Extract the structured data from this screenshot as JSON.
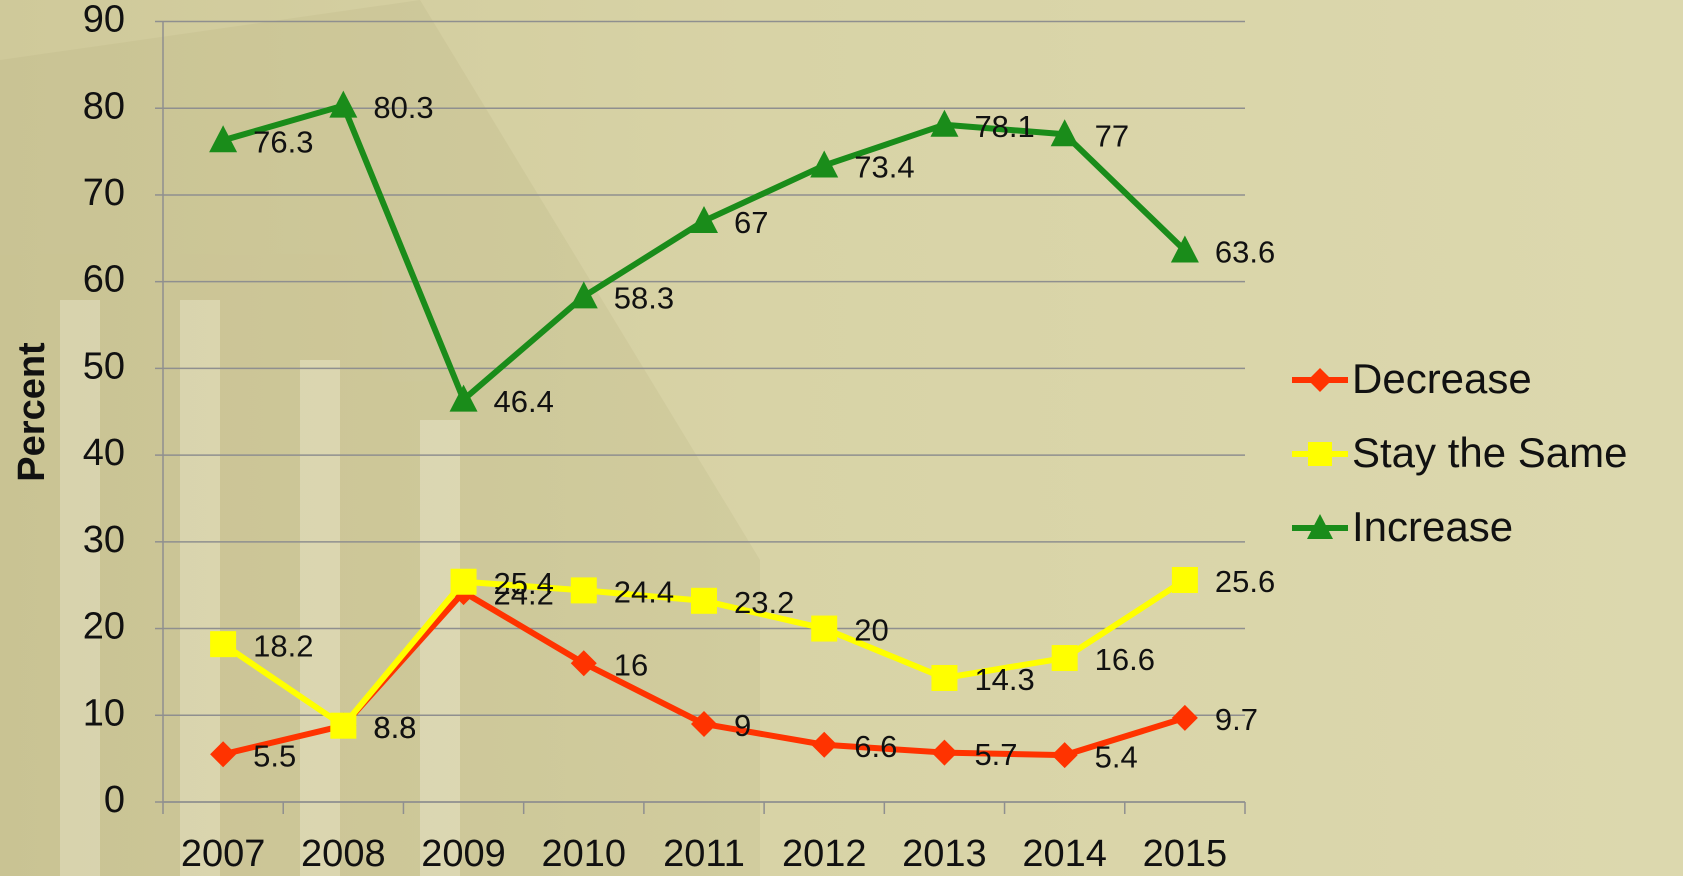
{
  "chart_data": {
    "type": "line",
    "y_label": "Percent",
    "categories": [
      "2007",
      "2008",
      "2009",
      "2010",
      "2011",
      "2012",
      "2013",
      "2014",
      "2015"
    ],
    "series": [
      {
        "name": "Decrease",
        "color": "#ff3300",
        "marker": "diamond",
        "values": [
          5.5,
          8.8,
          24.2,
          16,
          9,
          6.6,
          5.7,
          5.4,
          9.7
        ]
      },
      {
        "name": "Stay the Same",
        "color": "#ffff00",
        "marker": "square",
        "values": [
          18.2,
          8.8,
          25.4,
          24.4,
          23.2,
          20,
          14.3,
          16.6,
          25.6
        ]
      },
      {
        "name": "Increase",
        "color": "#1a8c1a",
        "marker": "triangle",
        "values": [
          76.3,
          80.3,
          46.4,
          58.3,
          67,
          73.4,
          78.1,
          77,
          63.6
        ]
      }
    ],
    "ylim": [
      0,
      90
    ],
    "yticks": [
      0,
      10,
      20,
      30,
      40,
      50,
      60,
      70,
      80,
      90
    ],
    "grid": true,
    "legend": "right"
  }
}
